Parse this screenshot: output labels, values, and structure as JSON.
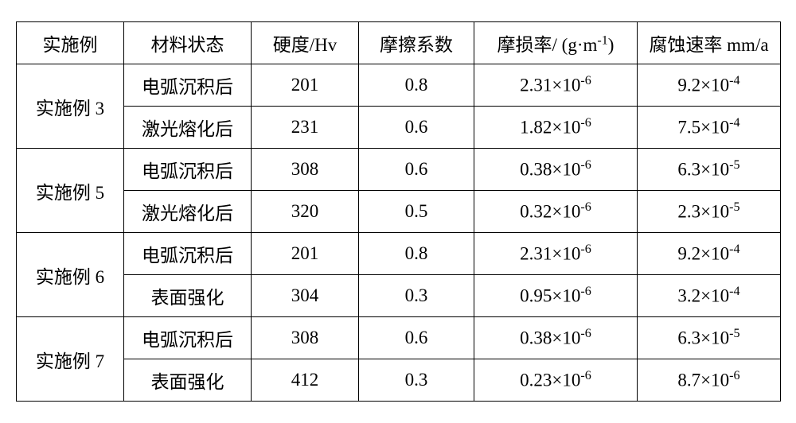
{
  "table": {
    "columns": [
      {
        "key": "example",
        "label": "实施例"
      },
      {
        "key": "state",
        "label": "材料状态"
      },
      {
        "key": "hardness",
        "label": "硬度/Hv"
      },
      {
        "key": "friction",
        "label": "摩擦系数"
      },
      {
        "key": "wear",
        "label_pre": "摩损率/ (g·m",
        "label_sup": "-1",
        "label_post": ")"
      },
      {
        "key": "corrosion",
        "label": "腐蚀速率 mm/a"
      }
    ],
    "groups": [
      {
        "example": "实施例 3",
        "rows": [
          {
            "state": "电弧沉积后",
            "hardness": "201",
            "friction": "0.8",
            "wear_base": "2.31×10",
            "wear_exp": "-6",
            "corr_base": "9.2×10",
            "corr_exp": "-4"
          },
          {
            "state": "激光熔化后",
            "hardness": "231",
            "friction": "0.6",
            "wear_base": "1.82×10",
            "wear_exp": "-6",
            "corr_base": "7.5×10",
            "corr_exp": "-4"
          }
        ]
      },
      {
        "example": "实施例 5",
        "rows": [
          {
            "state": "电弧沉积后",
            "hardness": "308",
            "friction": "0.6",
            "wear_base": "0.38×10",
            "wear_exp": "-6",
            "corr_base": "6.3×10",
            "corr_exp": "-5"
          },
          {
            "state": "激光熔化后",
            "hardness": "320",
            "friction": "0.5",
            "wear_base": "0.32×10",
            "wear_exp": "-6",
            "corr_base": "2.3×10",
            "corr_exp": "-5"
          }
        ]
      },
      {
        "example": "实施例 6",
        "rows": [
          {
            "state": "电弧沉积后",
            "hardness": "201",
            "friction": "0.8",
            "wear_base": "2.31×10",
            "wear_exp": "-6",
            "corr_base": "9.2×10",
            "corr_exp": "-4"
          },
          {
            "state": "表面强化",
            "hardness": "304",
            "friction": "0.3",
            "wear_base": "0.95×10",
            "wear_exp": "-6",
            "corr_base": "3.2×10",
            "corr_exp": "-4"
          }
        ]
      },
      {
        "example": "实施例 7",
        "rows": [
          {
            "state": "电弧沉积后",
            "hardness": "308",
            "friction": "0.6",
            "wear_base": "0.38×10",
            "wear_exp": "-6",
            "corr_base": "6.3×10",
            "corr_exp": "-5"
          },
          {
            "state": "表面强化",
            "hardness": "412",
            "friction": "0.3",
            "wear_base": "0.23×10",
            "wear_exp": "-6",
            "corr_base": "8.7×10",
            "corr_exp": "-6"
          }
        ]
      }
    ],
    "border_color": "#000000",
    "background_color": "#ffffff",
    "text_color": "#000000",
    "font_size": 23
  }
}
